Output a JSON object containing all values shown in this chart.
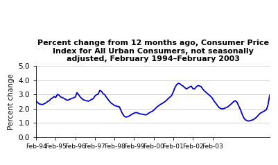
{
  "title": "Percent change from 12 months ago, Consumer Price\nIndex for All Urban Consumers, not seasonally\nadjusted, February 1994–February 2003",
  "ylabel": "Percent change",
  "ylim": [
    0.0,
    5.0
  ],
  "yticks": [
    0.0,
    1.0,
    2.0,
    3.0,
    4.0,
    5.0
  ],
  "line_color": "#0000cc",
  "line_width": 1.3,
  "background_color": "#ffffff",
  "xtick_labels": [
    "Feb-94",
    "Feb-95",
    "Feb-96",
    "Feb-97",
    "Feb-98",
    "Feb-99",
    "Feb-00",
    "Feb-01",
    "Feb-02",
    "Feb-03"
  ],
  "cpi_data": [
    2.52,
    2.42,
    2.32,
    2.3,
    2.28,
    2.35,
    2.4,
    2.5,
    2.55,
    2.68,
    2.75,
    2.85,
    2.78,
    3.0,
    2.95,
    2.82,
    2.78,
    2.72,
    2.65,
    2.58,
    2.62,
    2.68,
    2.72,
    2.76,
    2.82,
    3.12,
    2.98,
    2.82,
    2.7,
    2.62,
    2.58,
    2.55,
    2.52,
    2.58,
    2.65,
    2.7,
    2.88,
    2.98,
    3.02,
    3.28,
    3.22,
    3.05,
    2.98,
    2.8,
    2.65,
    2.5,
    2.38,
    2.3,
    2.22,
    2.18,
    2.15,
    2.12,
    1.85,
    1.62,
    1.45,
    1.4,
    1.42,
    1.48,
    1.55,
    1.62,
    1.68,
    1.72,
    1.7,
    1.65,
    1.62,
    1.6,
    1.58,
    1.55,
    1.6,
    1.68,
    1.75,
    1.8,
    1.88,
    2.0,
    2.12,
    2.2,
    2.28,
    2.35,
    2.42,
    2.5,
    2.6,
    2.72,
    2.82,
    2.92,
    3.18,
    3.48,
    3.68,
    3.78,
    3.75,
    3.65,
    3.58,
    3.48,
    3.38,
    3.45,
    3.52,
    3.58,
    3.4,
    3.38,
    3.52,
    3.62,
    3.6,
    3.55,
    3.38,
    3.25,
    3.15,
    3.05,
    2.95,
    2.85,
    2.72,
    2.52,
    2.38,
    2.22,
    2.08,
    2.0,
    1.98,
    2.0,
    2.05,
    2.1,
    2.18,
    2.28,
    2.38,
    2.5,
    2.55,
    2.45,
    2.2,
    1.95,
    1.65,
    1.38,
    1.22,
    1.15,
    1.12,
    1.15,
    1.18,
    1.22,
    1.3,
    1.4,
    1.52,
    1.65,
    1.72,
    1.78,
    1.85,
    1.92,
    2.25,
    2.95
  ]
}
